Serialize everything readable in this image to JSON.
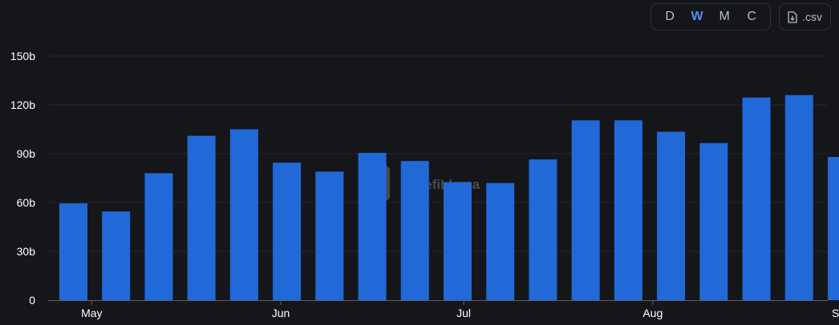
{
  "toolbar": {
    "periods": [
      "D",
      "W",
      "M",
      "C"
    ],
    "active_period": "W",
    "csv_label": ".csv",
    "csv_icon": "file-download-icon"
  },
  "watermark": {
    "text": "DefiLlama"
  },
  "colors": {
    "bar": "#2169d8",
    "background": "#151619",
    "grid": "#23252b",
    "active": "#4f8df5"
  },
  "chart_data": {
    "type": "bar",
    "title": "",
    "xlabel": "",
    "ylabel": "",
    "x_tick_labels": [
      "May",
      "Jun",
      "Jul",
      "Aug",
      "Sep"
    ],
    "y_tick_labels": [
      "0",
      "30b",
      "60b",
      "90b",
      "120b",
      "150b"
    ],
    "ylim": [
      0,
      150
    ],
    "unit": "b",
    "grid": true,
    "series": [
      {
        "values": [
          59.5,
          54.5,
          78,
          101,
          105,
          84.5,
          79,
          90.5,
          85.5,
          72.5,
          72,
          86.5,
          110.5,
          110.5,
          103.5,
          96.5,
          124.5,
          126,
          88
        ]
      }
    ]
  }
}
